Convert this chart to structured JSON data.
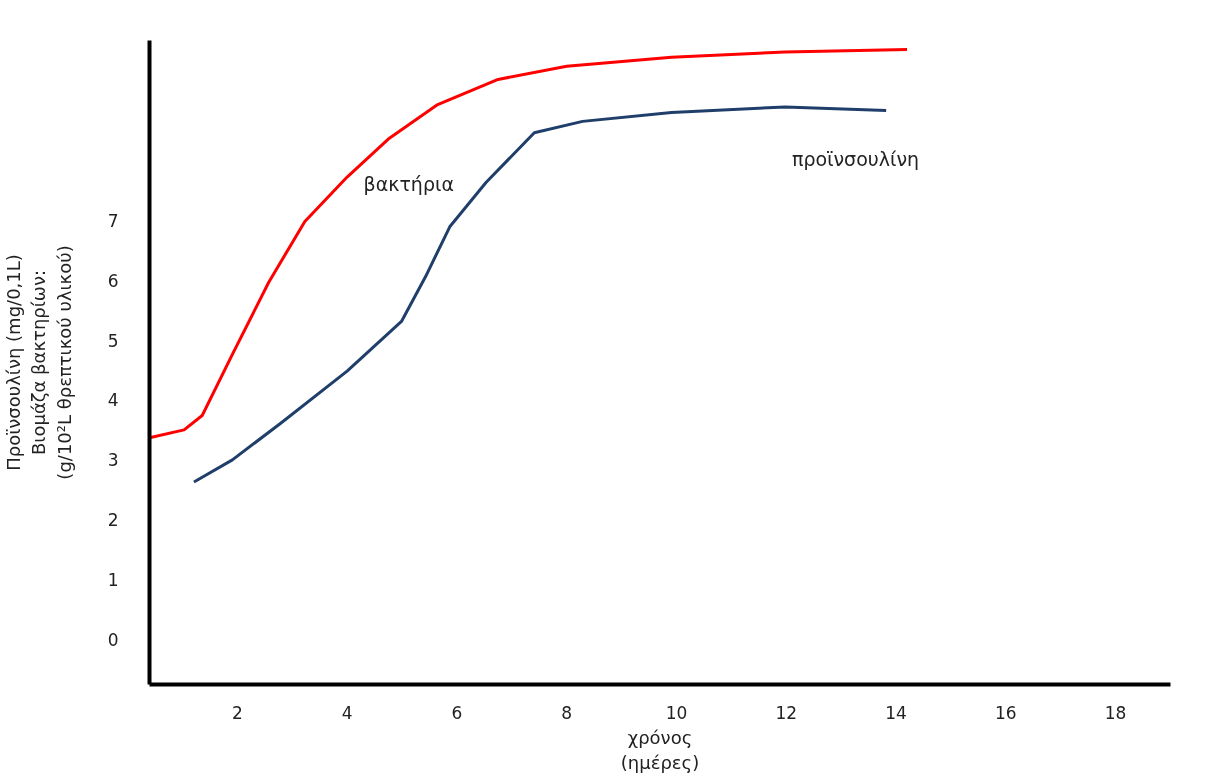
{
  "chart_data": {
    "type": "line",
    "xlabel": "χρόνος\n(ημέρες)",
    "ylabel": "Προϊνσουλίνη (mg/0,1L)\nΒιομάζα βακτηρίων:\n(g/10²L θρεπτικού υλικού)",
    "xlim": [
      0.4,
      19
    ],
    "ylim": [
      -0.75,
      10
    ],
    "xticks": [
      2,
      4,
      6,
      8,
      10,
      12,
      14,
      16,
      18
    ],
    "yticks": [
      0,
      1,
      2,
      3,
      4,
      5,
      6,
      7
    ],
    "grid": false,
    "marker": "none",
    "line_style": "solid",
    "series": [
      {
        "name": "βακτήρια",
        "color": "#ff0000",
        "x": [
          0.4,
          1.03,
          1.36,
          1.91,
          2.57,
          3.23,
          4.0,
          4.77,
          5.65,
          6.75,
          8.0,
          9.91,
          11.98,
          14.2
        ],
        "values": [
          3.37,
          3.5,
          3.74,
          4.76,
          5.96,
          6.98,
          7.72,
          8.37,
          8.93,
          9.35,
          9.57,
          9.72,
          9.81,
          9.85
        ]
      },
      {
        "name": "προϊνσουλίνη",
        "color": "#1f3f6a",
        "x": [
          1.21,
          1.91,
          2.79,
          4.0,
          4.99,
          5.43,
          5.87,
          6.53,
          7.41,
          8.29,
          9.91,
          11.98,
          13.82
        ],
        "values": [
          2.63,
          3.0,
          3.61,
          4.48,
          5.31,
          6.06,
          6.89,
          7.63,
          8.46,
          8.65,
          8.8,
          8.89,
          8.83
        ]
      }
    ]
  }
}
